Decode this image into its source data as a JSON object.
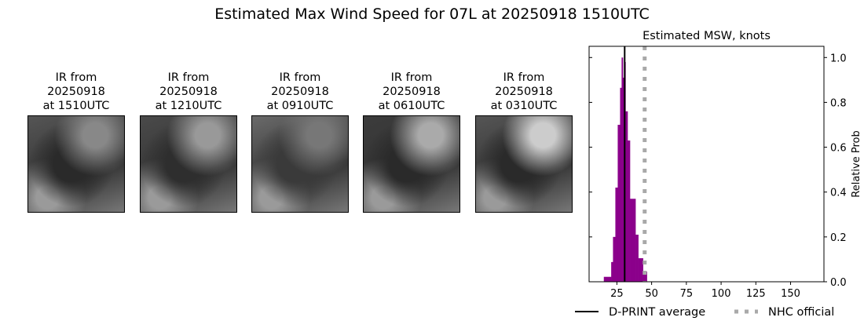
{
  "title": "Estimated Max Wind Speed for 07L at 20250918 1510UTC",
  "panels": [
    {
      "l1": "IR from",
      "l2": "20250918",
      "l3": "at 1510UTC"
    },
    {
      "l1": "IR from",
      "l2": "20250918",
      "l3": "at 1210UTC"
    },
    {
      "l1": "IR from",
      "l2": "20250918",
      "l3": "at 0910UTC"
    },
    {
      "l1": "IR from",
      "l2": "20250918",
      "l3": "at 0610UTC"
    },
    {
      "l1": "IR from",
      "l2": "20250918",
      "l3": "at 0310UTC"
    }
  ],
  "chart_data": {
    "type": "bar",
    "title": "Estimated MSW, knots",
    "ylabel": "Relative Prob",
    "xlim": [
      5,
      174
    ],
    "ylim": [
      0,
      1.05
    ],
    "xticks": [
      25,
      50,
      75,
      100,
      125,
      150
    ],
    "yticks": [
      0.0,
      0.2,
      0.4,
      0.6,
      0.8,
      1.0
    ],
    "bar_color": "#8b008b",
    "bins": [
      [
        15.6,
        20.9,
        0.022
      ],
      [
        20.9,
        22.2,
        0.088
      ],
      [
        22.2,
        23.9,
        0.2
      ],
      [
        23.9,
        25.6,
        0.42
      ],
      [
        25.6,
        27.3,
        0.7
      ],
      [
        27.3,
        28.4,
        0.865
      ],
      [
        28.4,
        29.3,
        1.0
      ],
      [
        29.3,
        30.3,
        0.91
      ],
      [
        30.3,
        31.2,
        0.98
      ],
      [
        31.2,
        32.7,
        0.76
      ],
      [
        32.7,
        34.4,
        0.63
      ],
      [
        34.4,
        38.4,
        0.37
      ],
      [
        38.4,
        40.4,
        0.21
      ],
      [
        40.4,
        43.8,
        0.105
      ],
      [
        43.8,
        46.6,
        0.045
      ]
    ],
    "dprint_average": 30.6,
    "nhc_official": 45,
    "legend": [
      {
        "label": "D-PRINT average",
        "color": "#000000",
        "style": "solid"
      },
      {
        "label": "NHC official",
        "color": "#a9a9a9",
        "style": "dotted"
      }
    ],
    "legend_placement": "bottom"
  }
}
